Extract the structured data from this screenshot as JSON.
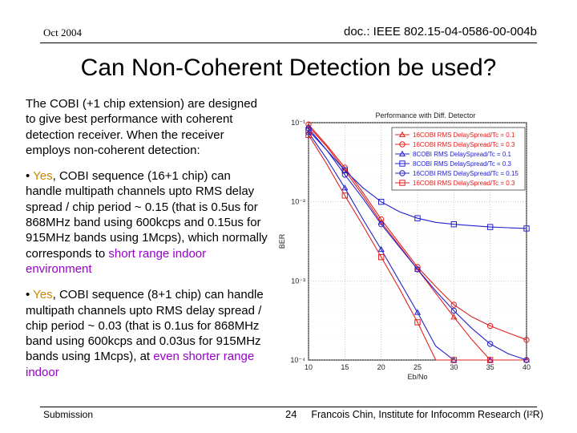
{
  "header": {
    "date": "Oct 2004",
    "doc_id": "doc.: IEEE 802.15-04-0586-00-004b"
  },
  "slide": {
    "title": "Can Non-Coherent Detection be used?",
    "intro": "The COBI (+1 chip extension) are designed to give best performance with coherent detection receiver.  When the receiver employs non-coherent detection:",
    "bullet1": {
      "prefix": "• ",
      "yes": "Yes",
      "text": ", COBI sequence (16+1 chip) can handle multipath channels upto RMS delay spread / chip period ~ 0.15 (that is 0.5us for 868MHz band using 600kcps and 0.15us for 915MHz bands using 1Mcps), which normally corresponds to ",
      "highlight": "short range indoor environment"
    },
    "bullet2": {
      "prefix": "• ",
      "yes": "Yes",
      "text": ", COBI sequence (8+1 chip) can handle multipath channels upto RMS delay spread / chip period ~ 0.03 (that is 0.1us for 868MHz band using 600kcps and 0.03us for 915MHz bands using 1Mcps), at ",
      "highlight": "even shorter range indoor"
    }
  },
  "footer": {
    "left": "Submission",
    "page": "24",
    "right": "Francois Chin, Institute for Infocomm Research (I²R)"
  },
  "colors": {
    "red": "#e02020",
    "blue": "#2222cc",
    "yes": "#cc8800",
    "highlight": "#9900cc"
  },
  "chart_data": {
    "type": "line",
    "title": "Performance with Diff. Detector",
    "xlabel": "Eb/No",
    "ylabel": "BER",
    "xlim": [
      10,
      40
    ],
    "ylim_log10": [
      -4,
      -1
    ],
    "y_scale": "log",
    "x_ticks": [
      "10",
      "15",
      "20",
      "25",
      "30",
      "35",
      "40"
    ],
    "y_ticks": [
      "10⁻¹",
      "10⁻²",
      "10⁻³",
      "10⁻⁴"
    ],
    "legend_position": "top-right",
    "series": [
      {
        "name": "16COBI RMS DelaySpread/Tc = 0.1",
        "color": "#e02020",
        "marker": "triangle",
        "x": [
          10,
          12.5,
          15,
          17.5,
          20,
          22.5,
          25,
          27.5,
          30,
          32.5,
          35,
          37.5,
          40
        ],
        "y": [
          0.09,
          0.05,
          0.025,
          0.012,
          0.0055,
          0.0028,
          0.0014,
          0.0007,
          0.00035,
          0.00018,
          9e-05,
          6e-05,
          5e-05
        ]
      },
      {
        "name": "16COBI RMS DelaySpread/Tc = 0.3",
        "color": "#e02020",
        "marker": "circle",
        "x": [
          10,
          12.5,
          15,
          17.5,
          20,
          22.5,
          25,
          27.5,
          30,
          32.5,
          35,
          37.5,
          40
        ],
        "y": [
          0.095,
          0.052,
          0.027,
          0.013,
          0.006,
          0.003,
          0.0015,
          0.00085,
          0.0005,
          0.00035,
          0.00027,
          0.00022,
          0.00018
        ]
      },
      {
        "name": "8COBI RMS DelaySpread/Tc = 0.1",
        "color": "#2222cc",
        "marker": "triangle",
        "x": [
          10,
          12.5,
          15,
          17.5,
          20,
          22.5,
          25,
          27.5,
          30,
          32.5,
          35
        ],
        "y": [
          0.075,
          0.035,
          0.015,
          0.006,
          0.0025,
          0.001,
          0.0004,
          0.00015,
          5e-05,
          1.5e-05,
          5e-06
        ]
      },
      {
        "name": "8COBI RMS DelaySpread/Tc = 0.3",
        "color": "#2222cc",
        "marker": "square",
        "x": [
          10,
          12.5,
          15,
          17.5,
          20,
          22.5,
          25,
          27.5,
          30,
          32.5,
          35,
          37.5,
          40
        ],
        "y": [
          0.08,
          0.045,
          0.025,
          0.015,
          0.01,
          0.0075,
          0.0062,
          0.0055,
          0.0052,
          0.005,
          0.0048,
          0.0047,
          0.0046
        ]
      },
      {
        "name": "16COBI RMS DelaySpread/Tc = 0.15",
        "color": "#2222cc",
        "marker": "circle",
        "x": [
          10,
          12.5,
          15,
          17.5,
          20,
          22.5,
          25,
          27.5,
          30,
          32.5,
          35,
          37.5,
          40
        ],
        "y": [
          0.085,
          0.045,
          0.022,
          0.011,
          0.0052,
          0.0027,
          0.0014,
          0.00075,
          0.00042,
          0.00025,
          0.00016,
          0.00012,
          0.0001
        ]
      },
      {
        "name": "16COBI RMS DelaySpread/Tc = 0.3",
        "color": "#e02020",
        "marker": "square",
        "x": [
          10,
          12.5,
          15,
          17.5,
          20,
          22.5,
          25,
          27.5,
          30,
          32.5,
          35
        ],
        "y": [
          0.07,
          0.03,
          0.012,
          0.005,
          0.002,
          0.0008,
          0.0003,
          0.0001,
          3e-05,
          1e-05,
          3e-06
        ]
      }
    ]
  }
}
